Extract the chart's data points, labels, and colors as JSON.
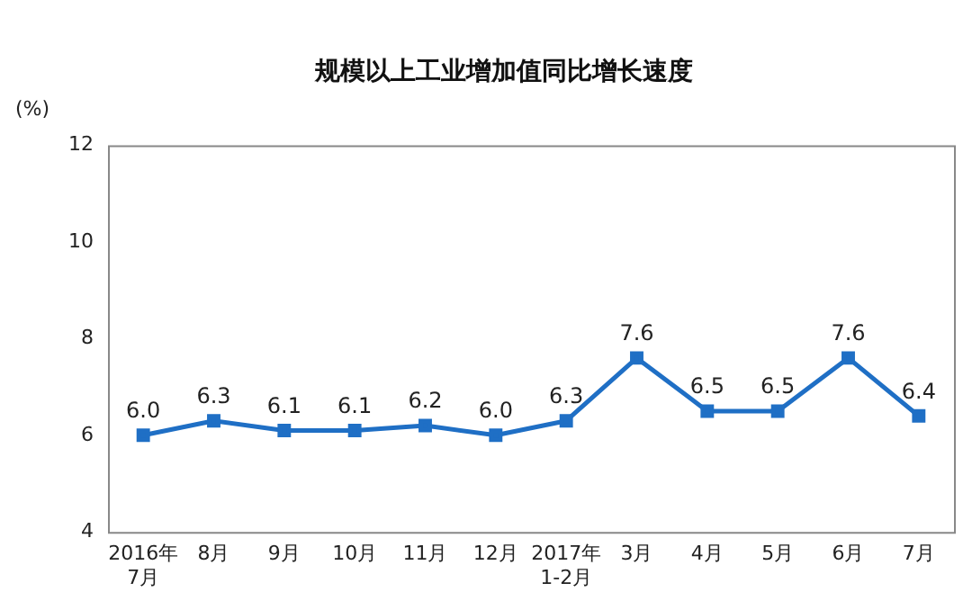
{
  "chart_data": {
    "type": "line",
    "title": "规模以上工业增加值同比增长速度",
    "ylabel": "(%)",
    "categories": [
      "2016年\n7月",
      "8月",
      "9月",
      "10月",
      "11月",
      "12月",
      "2017年\n1-2月",
      "3月",
      "4月",
      "5月",
      "6月",
      "7月"
    ],
    "series": [
      {
        "color": "#1f6fc5",
        "values": [
          6.0,
          6.3,
          6.1,
          6.1,
          6.2,
          6.0,
          6.3,
          7.6,
          6.5,
          6.5,
          7.6,
          6.4
        ],
        "value_labels": [
          "6.0",
          "6.3",
          "6.1",
          "6.1",
          "6.2",
          "6.0",
          "6.3",
          "7.6",
          "6.5",
          "6.5",
          "7.6",
          "6.4"
        ]
      }
    ],
    "ylim": [
      4,
      12
    ],
    "yticks": [
      4,
      6,
      8,
      10,
      12
    ],
    "grid": false,
    "legend": false,
    "marker": "square",
    "line_style": "solid"
  }
}
